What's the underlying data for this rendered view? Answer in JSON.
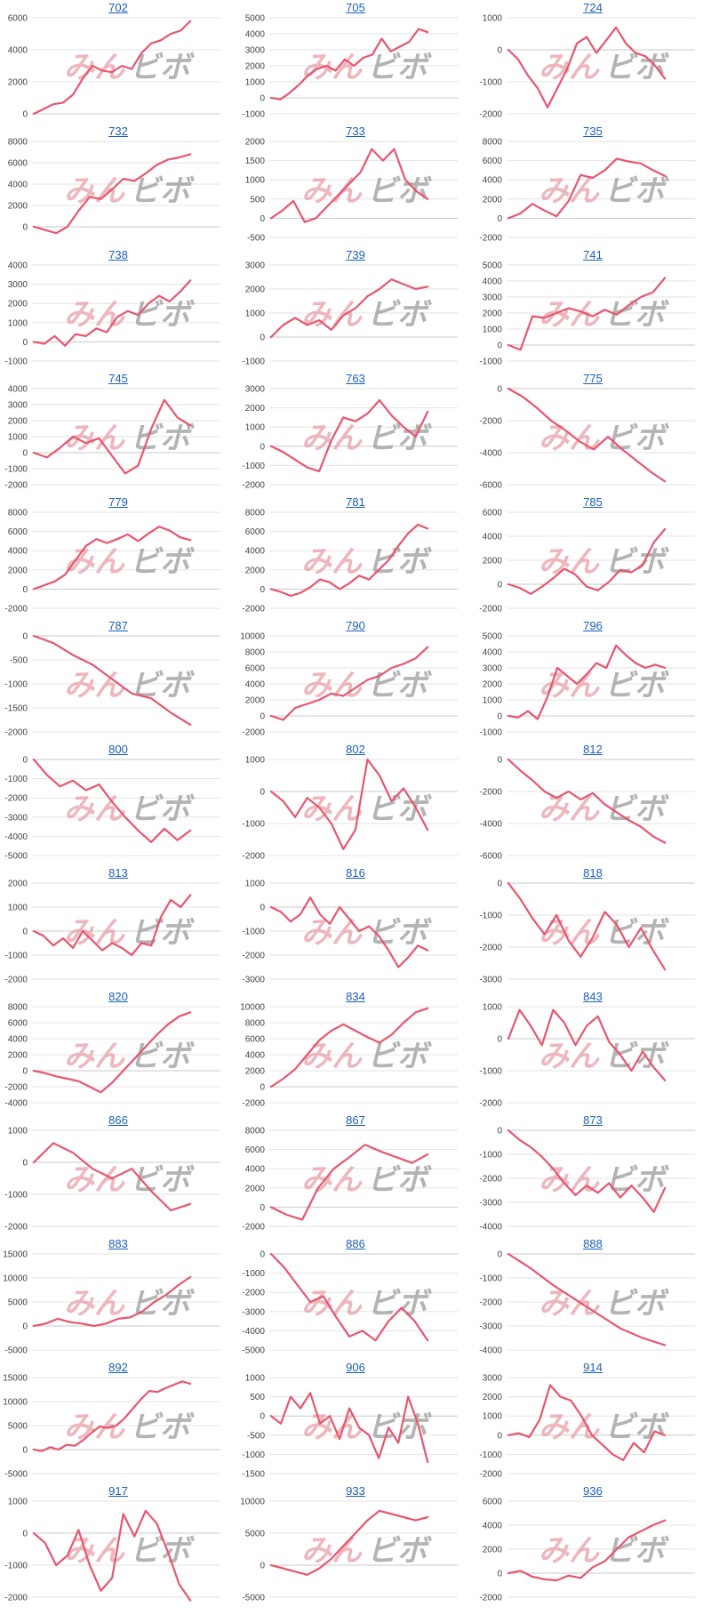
{
  "watermark": {
    "part1": "みん",
    "part2": "ビボ"
  },
  "colors": {
    "line": "#e8566e",
    "grid": "#e3e3e3",
    "zero_line": "#c8c8c8",
    "title": "#1a5fc2"
  },
  "chart_data": [
    {
      "type": "line",
      "title": "702",
      "yticks": [
        0,
        2000,
        4000,
        6000
      ],
      "ylim": [
        0,
        6000
      ],
      "values": [
        0,
        300,
        600,
        700,
        1200,
        2200,
        3000,
        2700,
        2600,
        3000,
        2800,
        3800,
        4400,
        4600,
        5000,
        5200,
        5800
      ]
    },
    {
      "type": "line",
      "title": "705",
      "yticks": [
        -1000,
        0,
        1000,
        2000,
        3000,
        4000,
        5000
      ],
      "ylim": [
        -1000,
        5000
      ],
      "values": [
        0,
        -100,
        300,
        800,
        1400,
        1800,
        2000,
        1700,
        2400,
        2000,
        2500,
        2700,
        3700,
        2900,
        3200,
        3500,
        4300,
        4100
      ]
    },
    {
      "type": "line",
      "title": "724",
      "yticks": [
        -2000,
        -1000,
        0,
        1000
      ],
      "ylim": [
        -2000,
        1000
      ],
      "values": [
        0,
        -300,
        -800,
        -1200,
        -1800,
        -1200,
        -600,
        200,
        400,
        -100,
        300,
        700,
        200,
        -100,
        -200,
        -500,
        -900
      ]
    },
    {
      "type": "line",
      "title": "732",
      "yticks": [
        0,
        2000,
        4000,
        6000,
        8000
      ],
      "ylim": [
        -1000,
        8000
      ],
      "values": [
        0,
        -300,
        -600,
        0,
        1500,
        2800,
        2600,
        3500,
        4500,
        4300,
        5000,
        5800,
        6300,
        6500,
        6800
      ]
    },
    {
      "type": "line",
      "title": "733",
      "yticks": [
        -500,
        0,
        500,
        1000,
        1500,
        2000
      ],
      "ylim": [
        -500,
        2000
      ],
      "values": [
        0,
        200,
        450,
        -100,
        0,
        300,
        600,
        900,
        1200,
        1800,
        1500,
        1800,
        1000,
        700,
        500
      ]
    },
    {
      "type": "line",
      "title": "735",
      "yticks": [
        -2000,
        0,
        2000,
        4000,
        6000,
        8000
      ],
      "ylim": [
        -2000,
        8000
      ],
      "values": [
        0,
        500,
        1500,
        800,
        200,
        1800,
        4500,
        4200,
        5000,
        6200,
        5900,
        5700,
        5000,
        4400
      ]
    },
    {
      "type": "line",
      "title": "738",
      "yticks": [
        -1000,
        0,
        1000,
        2000,
        3000,
        4000
      ],
      "ylim": [
        -1000,
        4000
      ],
      "values": [
        0,
        -100,
        300,
        -200,
        400,
        300,
        700,
        500,
        1300,
        1600,
        1400,
        2000,
        2400,
        2100,
        2600,
        3200
      ]
    },
    {
      "type": "line",
      "title": "739",
      "yticks": [
        -1000,
        0,
        1000,
        2000,
        3000
      ],
      "ylim": [
        -1000,
        3000
      ],
      "values": [
        0,
        500,
        800,
        500,
        700,
        300,
        900,
        1200,
        1700,
        2000,
        2400,
        2200,
        2000,
        2100
      ]
    },
    {
      "type": "line",
      "title": "741",
      "yticks": [
        -1000,
        0,
        1000,
        2000,
        3000,
        4000,
        5000
      ],
      "ylim": [
        -1000,
        5000
      ],
      "values": [
        0,
        -300,
        1800,
        1700,
        2000,
        2300,
        2100,
        1800,
        2200,
        1900,
        2500,
        3000,
        3300,
        4200
      ]
    },
    {
      "type": "line",
      "title": "745",
      "yticks": [
        -2000,
        -1000,
        0,
        1000,
        2000,
        3000,
        4000
      ],
      "ylim": [
        -2000,
        4000
      ],
      "values": [
        0,
        -300,
        300,
        1000,
        600,
        900,
        -200,
        -1300,
        -800,
        1500,
        3300,
        2200,
        1700
      ]
    },
    {
      "type": "line",
      "title": "763",
      "yticks": [
        -2000,
        -1000,
        0,
        1000,
        2000,
        3000
      ],
      "ylim": [
        -2000,
        3000
      ],
      "values": [
        0,
        -300,
        -700,
        -1100,
        -1300,
        300,
        1500,
        1300,
        1700,
        2400,
        1600,
        1000,
        500,
        1800
      ]
    },
    {
      "type": "line",
      "title": "775",
      "yticks": [
        -6000,
        -4000,
        -2000,
        0
      ],
      "ylim": [
        -6000,
        0
      ],
      "values": [
        0,
        -500,
        -1200,
        -2000,
        -2600,
        -3300,
        -3800,
        -3000,
        -3800,
        -4500,
        -5200,
        -5800
      ]
    },
    {
      "type": "line",
      "title": "779",
      "yticks": [
        -2000,
        0,
        2000,
        4000,
        6000,
        8000
      ],
      "ylim": [
        -2000,
        8000
      ],
      "values": [
        0,
        400,
        800,
        1500,
        3000,
        4500,
        5200,
        4800,
        5200,
        5700,
        5000,
        5800,
        6500,
        6100,
        5400,
        5100
      ]
    },
    {
      "type": "line",
      "title": "781",
      "yticks": [
        -2000,
        0,
        2000,
        4000,
        6000,
        8000
      ],
      "ylim": [
        -2000,
        8000
      ],
      "values": [
        0,
        -300,
        -700,
        -400,
        200,
        1000,
        700,
        0,
        600,
        1400,
        1000,
        2000,
        3000,
        4500,
        5800,
        6700,
        6300
      ]
    },
    {
      "type": "line",
      "title": "785",
      "yticks": [
        -2000,
        0,
        2000,
        4000,
        6000
      ],
      "ylim": [
        -2000,
        6000
      ],
      "values": [
        0,
        -300,
        -800,
        -200,
        500,
        1300,
        800,
        -200,
        -500,
        200,
        1200,
        1000,
        1600,
        3500,
        4600
      ]
    },
    {
      "type": "line",
      "title": "787",
      "yticks": [
        -2000,
        -1500,
        -1000,
        -500,
        0
      ],
      "ylim": [
        -2000,
        0
      ],
      "values": [
        0,
        -150,
        -400,
        -600,
        -900,
        -1200,
        -1300,
        -1600,
        -1850
      ]
    },
    {
      "type": "line",
      "title": "790",
      "yticks": [
        -2000,
        0,
        2000,
        4000,
        6000,
        8000,
        10000
      ],
      "ylim": [
        -2000,
        10000
      ],
      "values": [
        0,
        -500,
        1000,
        1500,
        2000,
        2800,
        2500,
        3500,
        4500,
        5000,
        6000,
        6500,
        7200,
        8600
      ]
    },
    {
      "type": "line",
      "title": "796",
      "yticks": [
        -1000,
        0,
        1000,
        2000,
        3000,
        4000,
        5000
      ],
      "ylim": [
        -1000,
        5000
      ],
      "values": [
        0,
        -100,
        300,
        -200,
        1200,
        3000,
        2500,
        2000,
        2600,
        3300,
        3000,
        4400,
        3800,
        3300,
        3000,
        3200,
        3000
      ]
    },
    {
      "type": "line",
      "title": "800",
      "yticks": [
        -5000,
        -4000,
        -3000,
        -2000,
        -1000,
        0
      ],
      "ylim": [
        -5000,
        0
      ],
      "values": [
        0,
        -800,
        -1400,
        -1100,
        -1600,
        -1300,
        -2200,
        -3000,
        -3700,
        -4300,
        -3600,
        -4200,
        -3700
      ]
    },
    {
      "type": "line",
      "title": "802",
      "yticks": [
        -2000,
        -1000,
        0,
        1000
      ],
      "ylim": [
        -2000,
        1000
      ],
      "values": [
        0,
        -300,
        -800,
        -200,
        -500,
        -1000,
        -1800,
        -1200,
        1000,
        500,
        -300,
        100,
        -500,
        -1200
      ]
    },
    {
      "type": "line",
      "title": "812",
      "yticks": [
        -6000,
        -4000,
        -2000,
        0
      ],
      "ylim": [
        -6000,
        0
      ],
      "values": [
        0,
        -700,
        -1300,
        -2000,
        -2400,
        -2000,
        -2500,
        -2100,
        -2800,
        -3300,
        -3800,
        -4200,
        -4800,
        -5200
      ]
    },
    {
      "type": "line",
      "title": "813",
      "yticks": [
        -2000,
        -1000,
        0,
        1000,
        2000
      ],
      "ylim": [
        -2000,
        2000
      ],
      "values": [
        0,
        -200,
        -600,
        -300,
        -700,
        0,
        -400,
        -800,
        -500,
        -700,
        -1000,
        -500,
        -600,
        600,
        1300,
        1000,
        1500
      ]
    },
    {
      "type": "line",
      "title": "816",
      "yticks": [
        -3000,
        -2000,
        -1000,
        0,
        1000
      ],
      "ylim": [
        -3000,
        1000
      ],
      "values": [
        0,
        -200,
        -600,
        -300,
        400,
        -300,
        -700,
        0,
        -500,
        -1000,
        -800,
        -1200,
        -1800,
        -2500,
        -2100,
        -1600,
        -1800
      ]
    },
    {
      "type": "line",
      "title": "818",
      "yticks": [
        -3000,
        -2000,
        -1000,
        0
      ],
      "ylim": [
        -3000,
        0
      ],
      "values": [
        0,
        -500,
        -1100,
        -1600,
        -1000,
        -1800,
        -2300,
        -1700,
        -900,
        -1300,
        -2000,
        -1400,
        -2100,
        -2700
      ]
    },
    {
      "type": "line",
      "title": "820",
      "yticks": [
        -4000,
        -2000,
        0,
        2000,
        4000,
        6000,
        8000
      ],
      "ylim": [
        -4000,
        8000
      ],
      "values": [
        0,
        -300,
        -700,
        -1000,
        -1300,
        -2000,
        -2700,
        -1500,
        0,
        1500,
        3000,
        4500,
        5800,
        6800,
        7300
      ]
    },
    {
      "type": "line",
      "title": "834",
      "yticks": [
        -2000,
        0,
        2000,
        4000,
        6000,
        8000,
        10000
      ],
      "ylim": [
        -2000,
        10000
      ],
      "values": [
        0,
        1000,
        2200,
        4000,
        5800,
        7000,
        7800,
        7000,
        6200,
        5500,
        6500,
        8000,
        9300,
        9800
      ]
    },
    {
      "type": "line",
      "title": "843",
      "yticks": [
        -2000,
        -1000,
        0,
        1000
      ],
      "ylim": [
        -2000,
        1000
      ],
      "values": [
        0,
        900,
        400,
        -200,
        900,
        500,
        -200,
        400,
        700,
        -100,
        -500,
        -1000,
        -400,
        -900,
        -1300
      ]
    },
    {
      "type": "line",
      "title": "866",
      "yticks": [
        -2000,
        -1000,
        0,
        1000
      ],
      "ylim": [
        -2000,
        1000
      ],
      "values": [
        0,
        600,
        300,
        -200,
        -500,
        -200,
        -900,
        -1500,
        -1300
      ]
    },
    {
      "type": "line",
      "title": "867",
      "yticks": [
        -2000,
        0,
        2000,
        4000,
        6000,
        8000
      ],
      "ylim": [
        -2000,
        8000
      ],
      "values": [
        0,
        -800,
        -1300,
        2000,
        4000,
        5200,
        6500,
        5800,
        5200,
        4600,
        5500
      ]
    },
    {
      "type": "line",
      "title": "873",
      "yticks": [
        -4000,
        -3000,
        -2000,
        -1000,
        0
      ],
      "ylim": [
        -4000,
        0
      ],
      "values": [
        0,
        -400,
        -700,
        -1100,
        -1600,
        -2200,
        -2700,
        -2300,
        -2600,
        -2200,
        -2800,
        -2300,
        -2800,
        -3400,
        -2400
      ]
    },
    {
      "type": "line",
      "title": "883",
      "yticks": [
        -5000,
        0,
        5000,
        10000,
        15000
      ],
      "ylim": [
        -5000,
        15000
      ],
      "values": [
        0,
        500,
        1500,
        800,
        500,
        0,
        500,
        1500,
        1800,
        3000,
        5000,
        6500,
        8500,
        10200
      ]
    },
    {
      "type": "line",
      "title": "886",
      "yticks": [
        -5000,
        -4000,
        -3000,
        -2000,
        -1000,
        0
      ],
      "ylim": [
        -5000,
        0
      ],
      "values": [
        0,
        -700,
        -1600,
        -2500,
        -2200,
        -3300,
        -4300,
        -4000,
        -4500,
        -3500,
        -2800,
        -3500,
        -4500
      ]
    },
    {
      "type": "line",
      "title": "888",
      "yticks": [
        -4000,
        -3000,
        -2000,
        -1000,
        0
      ],
      "ylim": [
        -4000,
        0
      ],
      "values": [
        0,
        -600,
        -1300,
        -1900,
        -2500,
        -3100,
        -3500,
        -3800
      ]
    },
    {
      "type": "line",
      "title": "892",
      "yticks": [
        -5000,
        0,
        5000,
        10000,
        15000
      ],
      "ylim": [
        -5000,
        15000
      ],
      "values": [
        0,
        -300,
        500,
        0,
        1000,
        800,
        2000,
        3500,
        4800,
        4500,
        5000,
        6500,
        8500,
        10500,
        12200,
        12000,
        12800,
        13500,
        14200,
        13700
      ]
    },
    {
      "type": "line",
      "title": "906",
      "yticks": [
        -1500,
        -1000,
        -500,
        0,
        500,
        1000
      ],
      "ylim": [
        -1500,
        1000
      ],
      "values": [
        0,
        -200,
        500,
        200,
        600,
        -200,
        0,
        -600,
        200,
        -300,
        -500,
        -1100,
        -300,
        -700,
        500,
        -200,
        -1200
      ]
    },
    {
      "type": "line",
      "title": "914",
      "yticks": [
        -2000,
        -1000,
        0,
        1000,
        2000,
        3000
      ],
      "ylim": [
        -2000,
        3000
      ],
      "values": [
        0,
        100,
        -100,
        800,
        2600,
        2000,
        1800,
        1000,
        0,
        -500,
        -1000,
        -1300,
        -400,
        -900,
        200,
        0
      ]
    },
    {
      "type": "line",
      "title": "917",
      "yticks": [
        -2000,
        -1000,
        0,
        1000
      ],
      "ylim": [
        -2000,
        1000
      ],
      "values": [
        0,
        -300,
        -1000,
        -700,
        100,
        -1000,
        -1800,
        -1400,
        600,
        -100,
        700,
        300,
        -600,
        -1600,
        -2100
      ]
    },
    {
      "type": "line",
      "title": "933",
      "yticks": [
        -5000,
        0,
        5000,
        10000
      ],
      "ylim": [
        -5000,
        10000
      ],
      "values": [
        0,
        -500,
        -1000,
        -1500,
        -500,
        1000,
        3000,
        5000,
        7000,
        8500,
        8000,
        7500,
        7000,
        7500
      ]
    },
    {
      "type": "line",
      "title": "936",
      "yticks": [
        -2000,
        0,
        2000,
        4000,
        6000
      ],
      "ylim": [
        -2000,
        6000
      ],
      "values": [
        0,
        200,
        -300,
        -500,
        -600,
        -200,
        -400,
        500,
        1000,
        2000,
        3000,
        3500,
        4000,
        4400
      ]
    }
  ]
}
